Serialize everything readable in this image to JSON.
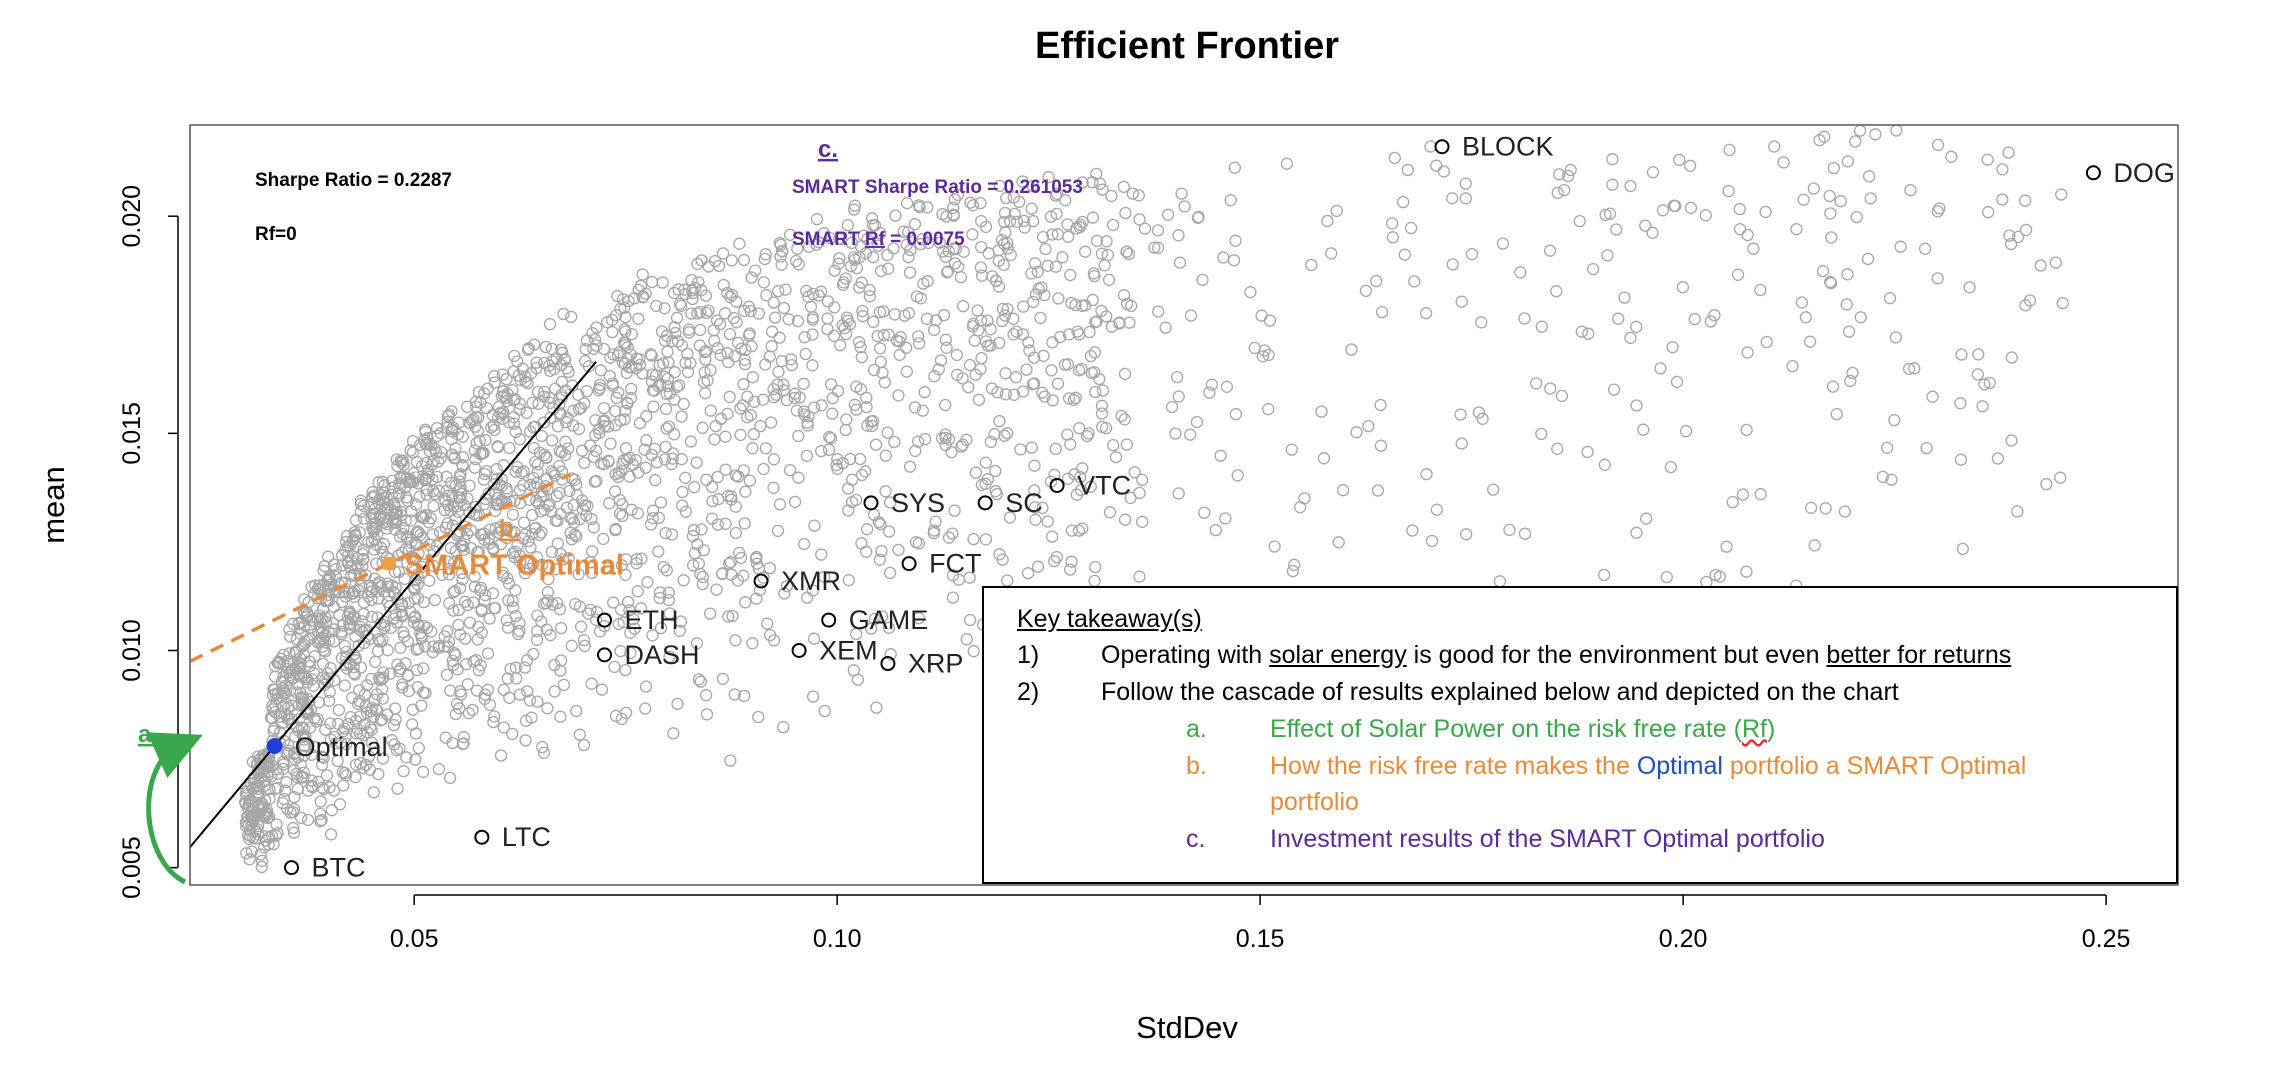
{
  "chart_data": {
    "type": "scatter",
    "title": "Efficient Frontier",
    "xlabel": "StdDev",
    "ylabel": "mean",
    "xlim": [
      0.0235,
      0.2585
    ],
    "ylim": [
      0.0046,
      0.0221
    ],
    "x_ticks": [
      0.05,
      0.1,
      0.15,
      0.2,
      0.25
    ],
    "x_tick_labels": [
      "0.05",
      "0.10",
      "0.15",
      "0.20",
      "0.25"
    ],
    "y_ticks": [
      0.005,
      0.01,
      0.015,
      0.02
    ],
    "y_tick_labels": [
      "0.005",
      "0.010",
      "0.015",
      "0.020"
    ],
    "cloud_color": "#a6a6a6",
    "assets": [
      {
        "name": "BTC",
        "x": 0.0355,
        "y": 0.005
      },
      {
        "name": "LTC",
        "x": 0.058,
        "y": 0.0057
      },
      {
        "name": "ETH",
        "x": 0.0725,
        "y": 0.0107
      },
      {
        "name": "DASH",
        "x": 0.0725,
        "y": 0.0099
      },
      {
        "name": "XMR",
        "x": 0.091,
        "y": 0.0116
      },
      {
        "name": "GAME",
        "x": 0.099,
        "y": 0.0107
      },
      {
        "name": "XEM",
        "x": 0.0955,
        "y": 0.01
      },
      {
        "name": "XRP",
        "x": 0.106,
        "y": 0.0097
      },
      {
        "name": "SYS",
        "x": 0.104,
        "y": 0.0134
      },
      {
        "name": "SC",
        "x": 0.1175,
        "y": 0.0134
      },
      {
        "name": "VTC",
        "x": 0.126,
        "y": 0.0138
      },
      {
        "name": "FCT",
        "x": 0.1085,
        "y": 0.012
      },
      {
        "name": "BLOCK",
        "x": 0.1715,
        "y": 0.0216
      },
      {
        "name": "DOG",
        "x": 0.2485,
        "y": 0.021
      }
    ],
    "optimal": {
      "label": "Optimal",
      "x": 0.0335,
      "y": 0.0078,
      "color": "#1f3fd8"
    },
    "smart_optimal": {
      "label": "SMART Optimal",
      "letter": "b.",
      "x": 0.047,
      "y": 0.012,
      "color": "#f0a040"
    },
    "cal_line": {
      "rf": 0.0,
      "sharpe": 0.2287,
      "color": "#000000"
    },
    "smart_cal_line": {
      "rf": 0.0075,
      "sharpe": 0.261053,
      "color": "#e88a3a"
    },
    "annotations": {
      "sharpe": "Sharpe Ratio = 0.2287",
      "rf": "Rf=0",
      "c_letter": "c.",
      "smart_sharpe": "SMART Sharpe Ratio = 0.261053",
      "smart_rf_prefix": "SMART ",
      "smart_rf_word": "Rf",
      "smart_rf_value": " = 0.0075",
      "a_letter": "a."
    },
    "colors": {
      "green": "#3aa84a",
      "orange": "#e88a3a",
      "purple": "#5a2a9a",
      "blue": "#1f4fbf"
    }
  },
  "takeaway": {
    "heading": "Key takeaway(s)",
    "item1_num": "1)",
    "item1_pre": "Operating with ",
    "item1_u1": "solar energy",
    "item1_mid": " is good for the environment but even ",
    "item1_u2": "better for returns",
    "item2_num": "2)",
    "item2_text": "Follow the cascade of results explained below and depicted on the chart",
    "sub_a_letter": "a.",
    "sub_a_pre": "Effect of Solar Power on the risk free rate (",
    "sub_a_rf": "Rf",
    "sub_a_post": ")",
    "sub_b_letter": "b.",
    "sub_b_pre": "How the risk free rate makes the ",
    "sub_b_optimal": "Optimal",
    "sub_b_post": " portfolio a SMART Optimal",
    "sub_b_line2": "portfolio",
    "sub_c_letter": "c.",
    "sub_c_text": "Investment results of the SMART Optimal portfolio"
  }
}
